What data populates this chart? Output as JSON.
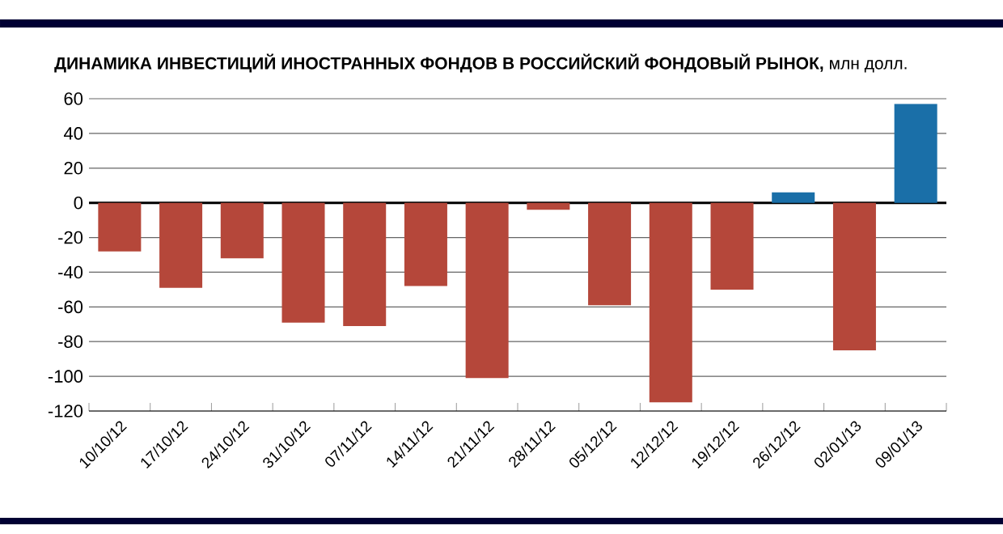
{
  "chart_data": {
    "type": "bar",
    "title": "**ДИНАМИКА ИНВЕСТИЦИЙ ИНОСТРАННЫХ ФОНДОВ В РОССИЙСКИЙ ФОНДОВЫЙ РЫНОК,** млн долл.",
    "categories": [
      "10/10/12",
      "17/10/12",
      "24/10/12",
      "31/10/12",
      "07/11/12",
      "14/11/12",
      "21/11/12",
      "28/11/12",
      "05/12/12",
      "12/12/12",
      "19/12/12",
      "26/12/12",
      "02/01/13",
      "09/01/13"
    ],
    "values": [
      -28,
      -49,
      -32,
      -69,
      -71,
      -48,
      -101,
      -4,
      -59,
      -115,
      -50,
      6,
      -85,
      57
    ],
    "colors": [
      "#b5473a",
      "#b5473a",
      "#b5473a",
      "#b5473a",
      "#b5473a",
      "#b5473a",
      "#b5473a",
      "#b5473a",
      "#b5473a",
      "#b5473a",
      "#b5473a",
      "#1a6fa8",
      "#b5473a",
      "#1a6fa8"
    ],
    "ylim": [
      -120,
      60
    ],
    "yticks": [
      -120,
      -100,
      -80,
      -60,
      -40,
      -20,
      0,
      20,
      40,
      60
    ],
    "grid": "y"
  }
}
